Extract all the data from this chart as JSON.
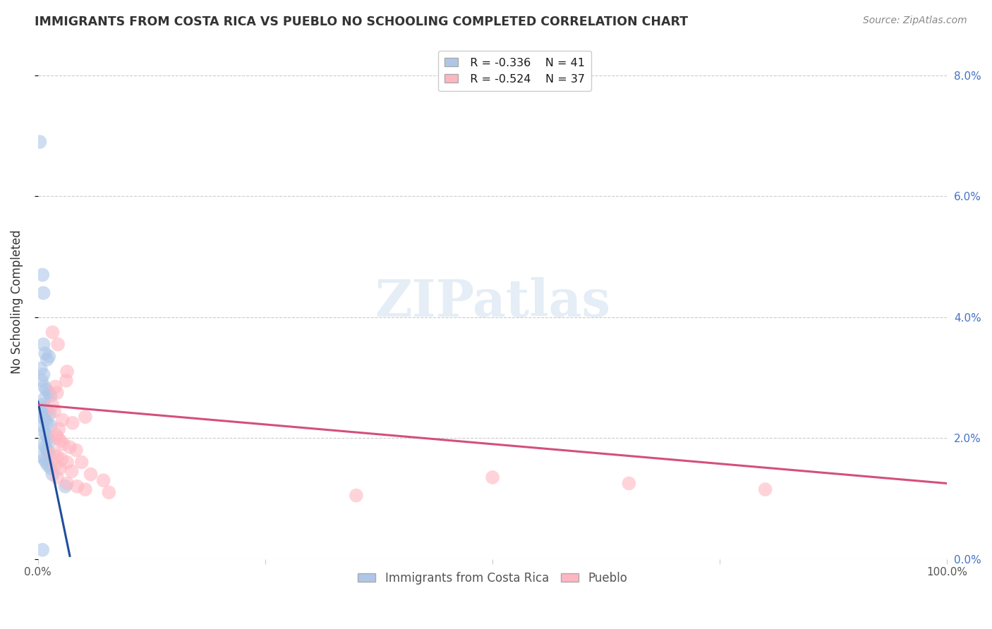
{
  "title": "IMMIGRANTS FROM COSTA RICA VS PUEBLO NO SCHOOLING COMPLETED CORRELATION CHART",
  "source": "Source: ZipAtlas.com",
  "ylabel": "No Schooling Completed",
  "xlim": [
    0,
    100
  ],
  "ylim": [
    0,
    8.5
  ],
  "ytick_values": [
    0,
    2,
    4,
    6,
    8
  ],
  "xtick_values": [
    0,
    25,
    50,
    75,
    100
  ],
  "legend_blue_r": "R = -0.336",
  "legend_blue_n": "N = 41",
  "legend_pink_r": "R = -0.524",
  "legend_pink_n": "N = 37",
  "legend_blue_label": "Immigrants from Costa Rica",
  "legend_pink_label": "Pueblo",
  "blue_color": "#aec7e8",
  "pink_color": "#ffb6c1",
  "blue_line_color": "#1f4e9e",
  "pink_line_color": "#d44f7e",
  "blue_scatter": [
    [
      0.2,
      6.9
    ],
    [
      0.5,
      4.7
    ],
    [
      0.6,
      4.4
    ],
    [
      0.6,
      3.55
    ],
    [
      0.8,
      3.4
    ],
    [
      1.0,
      3.3
    ],
    [
      1.2,
      3.35
    ],
    [
      0.3,
      3.15
    ],
    [
      0.6,
      3.05
    ],
    [
      0.4,
      2.95
    ],
    [
      0.7,
      2.85
    ],
    [
      0.9,
      2.8
    ],
    [
      1.2,
      2.75
    ],
    [
      1.4,
      2.7
    ],
    [
      0.7,
      2.65
    ],
    [
      0.5,
      2.55
    ],
    [
      0.8,
      2.5
    ],
    [
      1.0,
      2.45
    ],
    [
      1.3,
      2.4
    ],
    [
      0.4,
      2.4
    ],
    [
      0.6,
      2.35
    ],
    [
      0.8,
      2.3
    ],
    [
      1.0,
      2.25
    ],
    [
      1.4,
      2.2
    ],
    [
      0.5,
      2.2
    ],
    [
      0.7,
      2.1
    ],
    [
      0.9,
      2.05
    ],
    [
      1.1,
      2.0
    ],
    [
      1.3,
      1.95
    ],
    [
      0.6,
      1.9
    ],
    [
      0.8,
      1.85
    ],
    [
      1.0,
      1.8
    ],
    [
      1.2,
      1.75
    ],
    [
      0.4,
      1.7
    ],
    [
      0.7,
      1.65
    ],
    [
      0.9,
      1.6
    ],
    [
      1.1,
      1.55
    ],
    [
      1.4,
      1.5
    ],
    [
      0.5,
      0.15
    ],
    [
      1.6,
      1.4
    ],
    [
      3.0,
      1.2
    ]
  ],
  "pink_scatter": [
    [
      1.6,
      3.75
    ],
    [
      2.2,
      3.55
    ],
    [
      3.2,
      3.1
    ],
    [
      3.1,
      2.95
    ],
    [
      2.1,
      2.75
    ],
    [
      1.9,
      2.85
    ],
    [
      1.6,
      2.55
    ],
    [
      1.8,
      2.45
    ],
    [
      2.7,
      2.3
    ],
    [
      3.8,
      2.25
    ],
    [
      5.2,
      2.35
    ],
    [
      2.3,
      2.15
    ],
    [
      2.0,
      2.05
    ],
    [
      2.2,
      2.0
    ],
    [
      2.5,
      1.95
    ],
    [
      2.8,
      1.9
    ],
    [
      3.5,
      1.85
    ],
    [
      4.2,
      1.8
    ],
    [
      1.7,
      1.75
    ],
    [
      2.1,
      1.7
    ],
    [
      2.6,
      1.65
    ],
    [
      3.2,
      1.6
    ],
    [
      4.8,
      1.6
    ],
    [
      1.9,
      1.55
    ],
    [
      2.4,
      1.5
    ],
    [
      3.7,
      1.45
    ],
    [
      5.8,
      1.4
    ],
    [
      2.1,
      1.35
    ],
    [
      3.2,
      1.25
    ],
    [
      4.3,
      1.2
    ],
    [
      7.2,
      1.3
    ],
    [
      5.2,
      1.15
    ],
    [
      7.8,
      1.1
    ],
    [
      35.0,
      1.05
    ],
    [
      50.0,
      1.35
    ],
    [
      65.0,
      1.25
    ],
    [
      80.0,
      1.15
    ]
  ],
  "blue_trend_x": [
    0,
    3.5
  ],
  "blue_trend_y": [
    2.6,
    0.05
  ],
  "pink_trend_x": [
    0,
    100
  ],
  "pink_trend_y": [
    2.55,
    1.25
  ],
  "grid_color": "#cccccc",
  "bg_color": "#ffffff",
  "right_tick_color": "#4472c4",
  "title_color": "#333333",
  "source_color": "#888888"
}
